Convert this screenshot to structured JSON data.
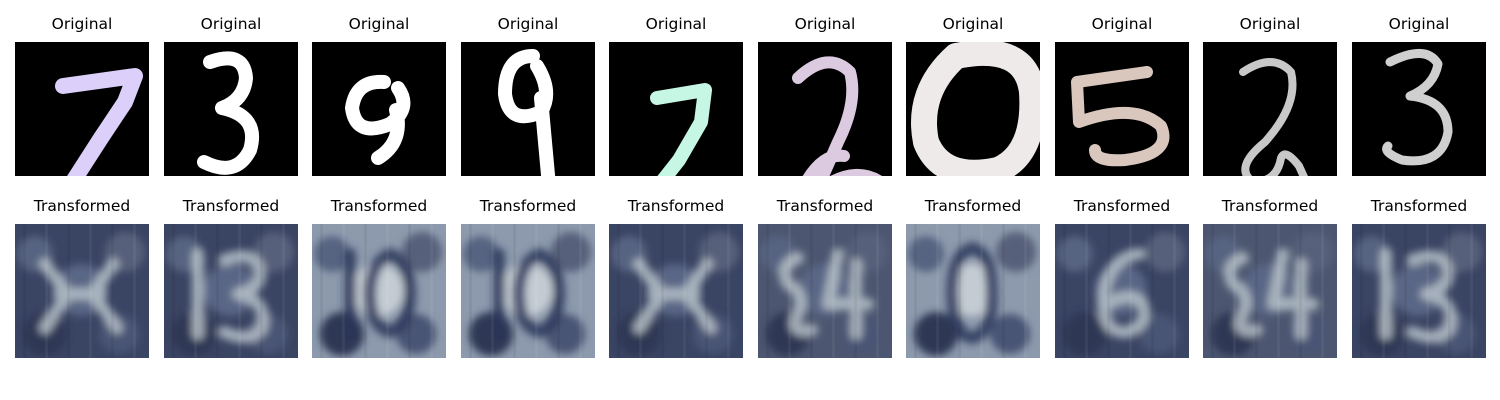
{
  "labels": {
    "original": "Original",
    "transformed": "Transformed"
  },
  "panels": [
    {
      "original_digit": "7",
      "digit_color": "#dcd0fb",
      "transformed_hint": "4-like blurred shape",
      "transformed_tone": "dark"
    },
    {
      "original_digit": "3",
      "digit_color": "#ffffff",
      "transformed_hint": "13",
      "transformed_tone": "dark"
    },
    {
      "original_digit": "9",
      "digit_color": "#ffffff",
      "transformed_hint": "10",
      "transformed_tone": "light"
    },
    {
      "original_digit": "9",
      "digit_color": "#ffffff",
      "transformed_hint": "10",
      "transformed_tone": "light"
    },
    {
      "original_digit": "7",
      "digit_color": "#c6f6e4",
      "transformed_hint": "4-like blurred shape",
      "transformed_tone": "dark"
    },
    {
      "original_digit": "2",
      "digit_color": "#dccbe0",
      "transformed_hint": "84",
      "transformed_tone": "mid"
    },
    {
      "original_digit": "0",
      "digit_color": "#eeeaea",
      "transformed_hint": "0",
      "transformed_tone": "light"
    },
    {
      "original_digit": "5",
      "digit_color": "#d9c6bd",
      "transformed_hint": "6",
      "transformed_tone": "dark"
    },
    {
      "original_digit": "2",
      "digit_color": "#c8c8c8",
      "transformed_hint": "84",
      "transformed_tone": "mid"
    },
    {
      "original_digit": "3",
      "digit_color": "#cfcfcf",
      "transformed_hint": "13",
      "transformed_tone": "dark"
    }
  ]
}
